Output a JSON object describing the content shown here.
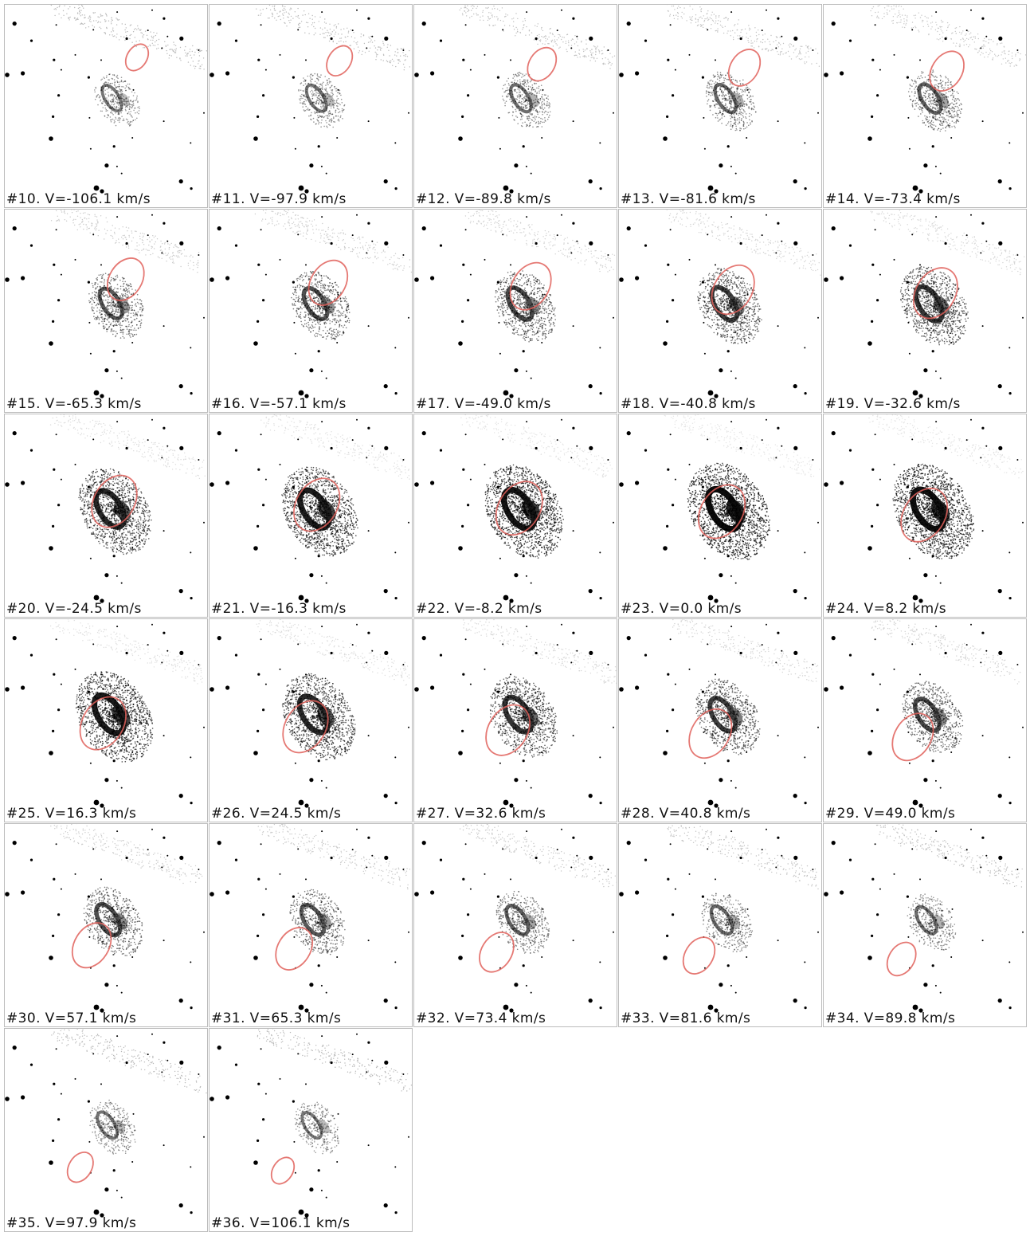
{
  "colors": {
    "ellipse": "#e0605a",
    "ink": "#000000",
    "border": "#bcbcbc"
  },
  "panels": [
    {
      "label": "#10. V=-106.1 km/s",
      "velocity_kms": -106.1,
      "intensity": 0.3
    },
    {
      "label": "#11. V=-97.9 km/s",
      "velocity_kms": -97.9,
      "intensity": 0.33
    },
    {
      "label": "#12. V=-89.8 km/s",
      "velocity_kms": -89.8,
      "intensity": 0.36
    },
    {
      "label": "#13. V=-81.6 km/s",
      "velocity_kms": -81.6,
      "intensity": 0.4
    },
    {
      "label": "#14. V=-73.4 km/s",
      "velocity_kms": -73.4,
      "intensity": 0.45
    },
    {
      "label": "#15. V=-65.3 km/s",
      "velocity_kms": -65.3,
      "intensity": 0.5
    },
    {
      "label": "#16. V=-57.1 km/s",
      "velocity_kms": -57.1,
      "intensity": 0.55
    },
    {
      "label": "#17. V=-49.0 km/s",
      "velocity_kms": -49.0,
      "intensity": 0.6
    },
    {
      "label": "#18. V=-40.8 km/s",
      "velocity_kms": -40.8,
      "intensity": 0.66
    },
    {
      "label": "#19. V=-32.6 km/s",
      "velocity_kms": -32.6,
      "intensity": 0.72
    },
    {
      "label": "#20. V=-24.5 km/s",
      "velocity_kms": -24.5,
      "intensity": 0.82
    },
    {
      "label": "#21. V=-16.3 km/s",
      "velocity_kms": -16.3,
      "intensity": 0.88
    },
    {
      "label": "#22. V=-8.2 km/s",
      "velocity_kms": -8.2,
      "intensity": 0.94
    },
    {
      "label": "#23. V=0.0 km/s",
      "velocity_kms": 0.0,
      "intensity": 1.0
    },
    {
      "label": "#24. V=8.2 km/s",
      "velocity_kms": 8.2,
      "intensity": 0.97
    },
    {
      "label": "#25. V=16.3 km/s",
      "velocity_kms": 16.3,
      "intensity": 0.9
    },
    {
      "label": "#26. V=24.5 km/s",
      "velocity_kms": 24.5,
      "intensity": 0.82
    },
    {
      "label": "#27. V=32.6 km/s",
      "velocity_kms": 32.6,
      "intensity": 0.74
    },
    {
      "label": "#28. V=40.8 km/s",
      "velocity_kms": 40.8,
      "intensity": 0.66
    },
    {
      "label": "#29. V=49.0 km/s",
      "velocity_kms": 49.0,
      "intensity": 0.6
    },
    {
      "label": "#30. V=57.1 km/s",
      "velocity_kms": 57.1,
      "intensity": 0.56
    },
    {
      "label": "#31. V=65.3 km/s",
      "velocity_kms": 65.3,
      "intensity": 0.5
    },
    {
      "label": "#32. V=73.4 km/s",
      "velocity_kms": 73.4,
      "intensity": 0.45
    },
    {
      "label": "#33. V=81.6 km/s",
      "velocity_kms": 81.6,
      "intensity": 0.4
    },
    {
      "label": "#34. V=89.8 km/s",
      "velocity_kms": 89.8,
      "intensity": 0.36
    },
    {
      "label": "#35. V=97.9 km/s",
      "velocity_kms": 97.9,
      "intensity": 0.33
    },
    {
      "label": "#36. V=106.1 km/s",
      "velocity_kms": 106.1,
      "intensity": 0.3
    }
  ]
}
